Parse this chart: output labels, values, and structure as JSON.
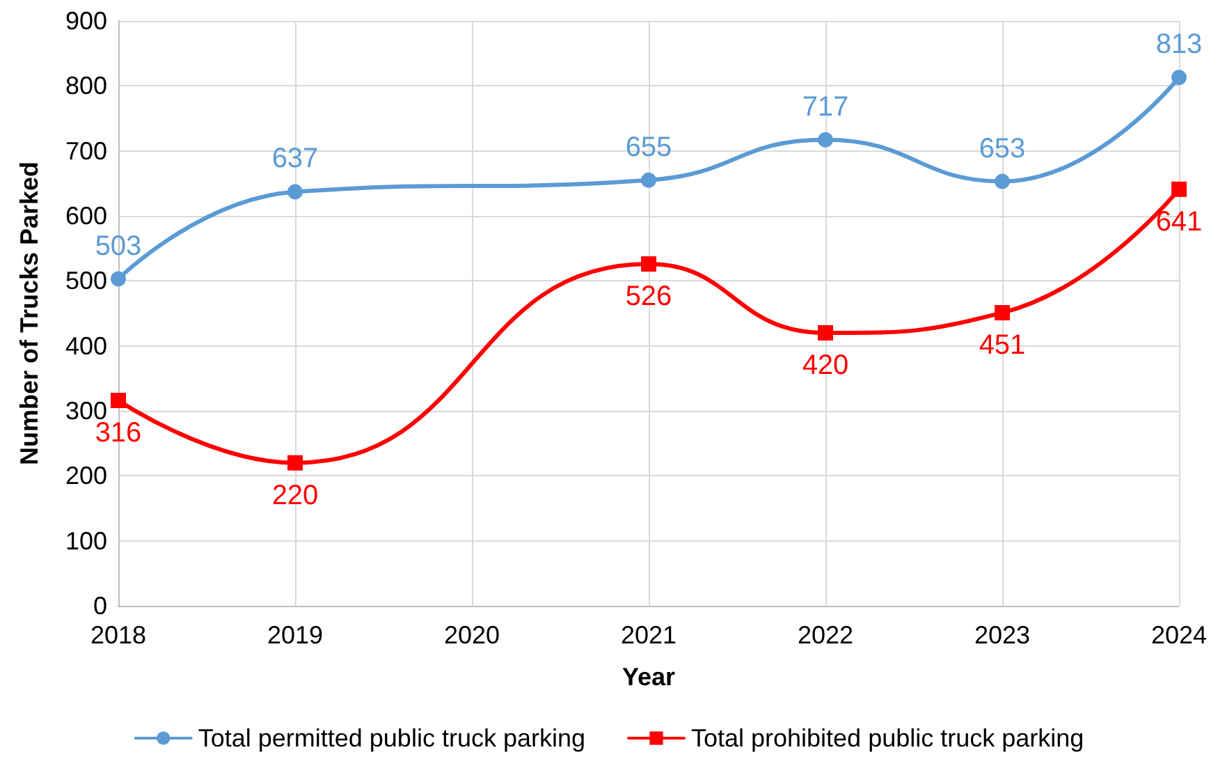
{
  "chart_data": {
    "type": "line",
    "xlabel": "Year",
    "ylabel": "Number of Trucks Parked",
    "categories": [
      "2018",
      "2019",
      "2020",
      "2021",
      "2022",
      "2023",
      "2024"
    ],
    "series": [
      {
        "name": "Total permitted public truck parking",
        "color": "#5b9bd5",
        "marker": "circle",
        "values": [
          503,
          637,
          null,
          655,
          717,
          653,
          813
        ]
      },
      {
        "name": "Total prohibited public truck parking",
        "color": "#ff0000",
        "marker": "square",
        "values": [
          316,
          220,
          null,
          526,
          420,
          451,
          641
        ]
      }
    ],
    "ylim": [
      0,
      900
    ],
    "yticks": [
      0,
      100,
      200,
      300,
      400,
      500,
      600,
      700,
      800,
      900
    ],
    "grid": true,
    "legend": "bottom",
    "data_labels": true
  }
}
